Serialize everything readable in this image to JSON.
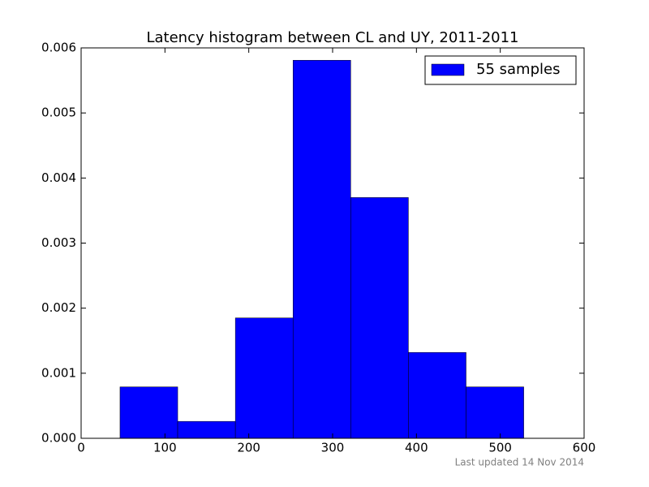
{
  "chart_data": {
    "type": "histogram",
    "title": "Latency histogram between CL and UY, 2011-2011",
    "annotation": "Last updated 14 Nov 2014",
    "bins": [
      46.4,
      115.2,
      184.0,
      252.8,
      321.6,
      390.4,
      459.2,
      528.0
    ],
    "series": [
      {
        "name": "55 samples",
        "color": "#0000ff",
        "values": [
          0.00079,
          0.00026,
          0.00185,
          0.00581,
          0.0037,
          0.00132,
          0.00079
        ]
      }
    ],
    "xlim": [
      0,
      600
    ],
    "xticks": [
      0,
      100,
      200,
      300,
      400,
      500,
      600
    ],
    "ylim": [
      0,
      0.006
    ],
    "yticks": [
      {
        "value": 0,
        "label": "0.000"
      },
      {
        "value": 0.001,
        "label": "0.001"
      },
      {
        "value": 0.002,
        "label": "0.002"
      },
      {
        "value": 0.003,
        "label": "0.003"
      },
      {
        "value": 0.004,
        "label": "0.004"
      },
      {
        "value": 0.005,
        "label": "0.005"
      },
      {
        "value": 0.006,
        "label": "0.006"
      }
    ],
    "legend": "upper right"
  }
}
